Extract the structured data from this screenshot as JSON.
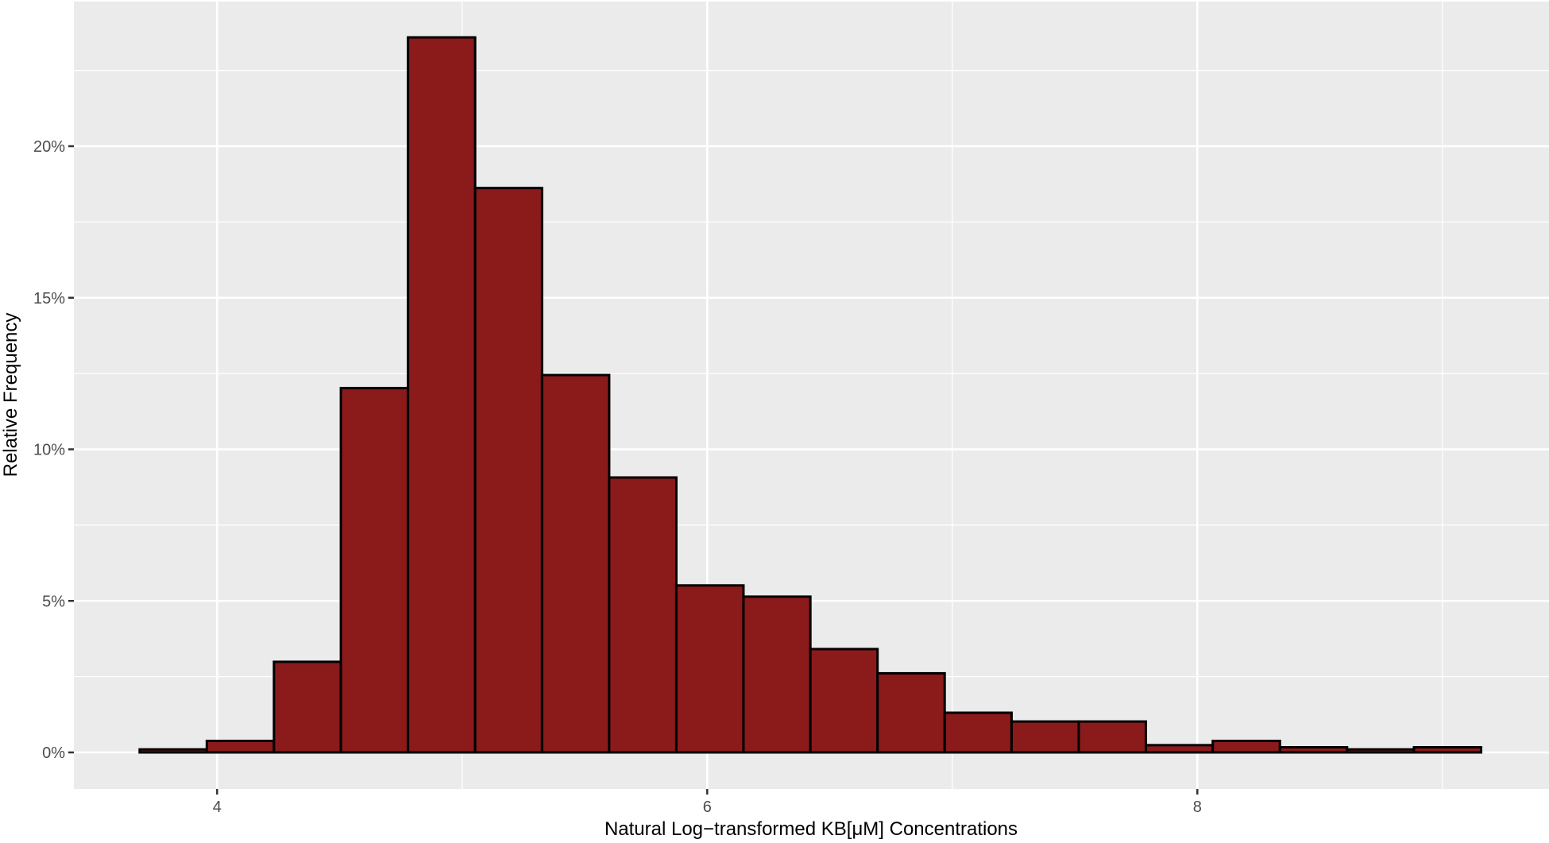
{
  "chart_data": {
    "type": "bar",
    "subtype": "histogram",
    "title": "",
    "xlabel": "Natural Log−transformed KB[μM] Concentrations",
    "ylabel": "Relative Frequency",
    "xlim": [
      3.4,
      9.4
    ],
    "ylim": [
      -1.2,
      24.8
    ],
    "x_ticks": [
      4,
      6,
      8
    ],
    "x_tick_labels": [
      "4",
      "6",
      "8"
    ],
    "y_ticks": [
      0,
      5,
      10,
      15,
      20
    ],
    "y_tick_labels": [
      "0%",
      "5%",
      "10%",
      "15%",
      "20%"
    ],
    "grid": true,
    "legend": null,
    "bin_start": 3.684,
    "bin_width": 0.2737,
    "bins": [
      {
        "x0": 3.684,
        "x1": 3.958,
        "value": 0.1
      },
      {
        "x0": 3.958,
        "x1": 4.232,
        "value": 0.38
      },
      {
        "x0": 4.232,
        "x1": 4.505,
        "value": 2.99
      },
      {
        "x0": 4.505,
        "x1": 4.779,
        "value": 12.02
      },
      {
        "x0": 4.779,
        "x1": 5.053,
        "value": 23.59
      },
      {
        "x0": 5.053,
        "x1": 5.326,
        "value": 18.62
      },
      {
        "x0": 5.326,
        "x1": 5.6,
        "value": 12.45
      },
      {
        "x0": 5.6,
        "x1": 5.874,
        "value": 9.07
      },
      {
        "x0": 5.874,
        "x1": 6.148,
        "value": 5.51
      },
      {
        "x0": 6.148,
        "x1": 6.421,
        "value": 5.14
      },
      {
        "x0": 6.421,
        "x1": 6.695,
        "value": 3.41
      },
      {
        "x0": 6.695,
        "x1": 6.969,
        "value": 2.61
      },
      {
        "x0": 6.969,
        "x1": 7.242,
        "value": 1.31
      },
      {
        "x0": 7.242,
        "x1": 7.516,
        "value": 1.02
      },
      {
        "x0": 7.516,
        "x1": 7.79,
        "value": 1.02
      },
      {
        "x0": 7.79,
        "x1": 8.063,
        "value": 0.24
      },
      {
        "x0": 8.063,
        "x1": 8.337,
        "value": 0.38
      },
      {
        "x0": 8.337,
        "x1": 8.611,
        "value": 0.17
      },
      {
        "x0": 8.611,
        "x1": 8.884,
        "value": 0.1
      },
      {
        "x0": 8.884,
        "x1": 9.158,
        "value": 0.17
      }
    ],
    "colors": {
      "fill": "#8B1A1A",
      "outline": "#000000",
      "panel_background": "#EBEBEB",
      "grid": "#FFFFFF"
    }
  }
}
